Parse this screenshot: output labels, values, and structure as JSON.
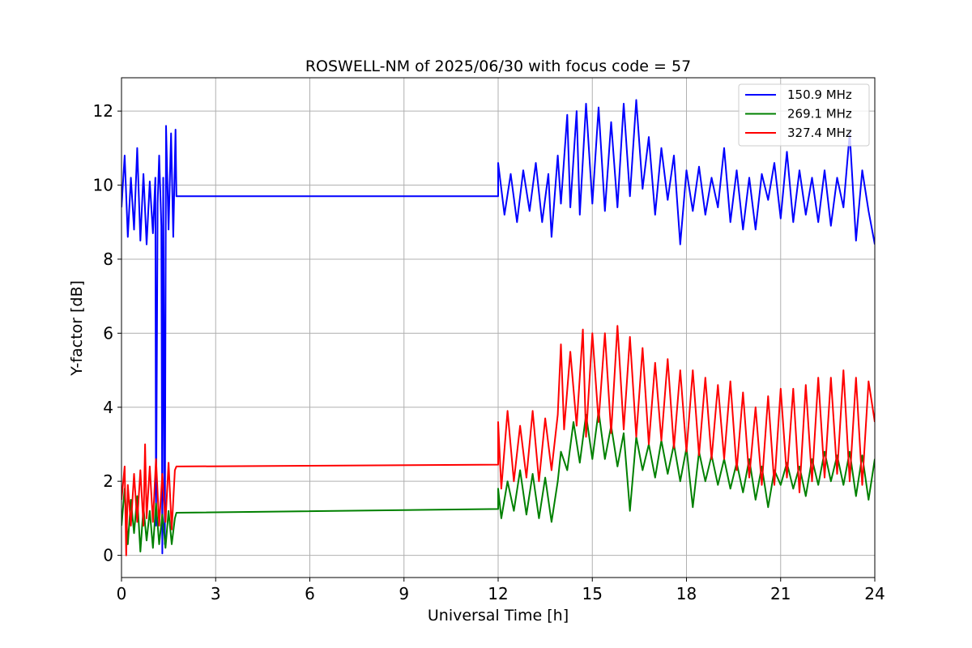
{
  "chart_data": {
    "type": "line",
    "title": "ROSWELL-NM of 2025/06/30 with focus code = 57",
    "xlabel": "Universal Time [h]",
    "ylabel": "Y-factor [dB]",
    "xlim": [
      0,
      24
    ],
    "ylim": [
      -0.6,
      12.9
    ],
    "xticks": [
      0,
      3,
      6,
      9,
      12,
      15,
      18,
      21,
      24
    ],
    "yticks": [
      0,
      2,
      4,
      6,
      8,
      10,
      12
    ],
    "grid": true,
    "legend_position": "top-right",
    "series": [
      {
        "name": "150.9 MHz",
        "color": "#0000ff",
        "points": [
          [
            0.0,
            9.4
          ],
          [
            0.1,
            10.8
          ],
          [
            0.2,
            8.6
          ],
          [
            0.3,
            10.2
          ],
          [
            0.4,
            8.8
          ],
          [
            0.5,
            11.0
          ],
          [
            0.6,
            8.5
          ],
          [
            0.7,
            10.3
          ],
          [
            0.8,
            8.4
          ],
          [
            0.9,
            10.1
          ],
          [
            1.0,
            8.7
          ],
          [
            1.08,
            10.2
          ],
          [
            1.1,
            0.8
          ],
          [
            1.15,
            9.5
          ],
          [
            1.2,
            10.8
          ],
          [
            1.27,
            8.9
          ],
          [
            1.3,
            0.05
          ],
          [
            1.33,
            10.2
          ],
          [
            1.38,
            0.3
          ],
          [
            1.42,
            11.6
          ],
          [
            1.5,
            8.8
          ],
          [
            1.58,
            11.4
          ],
          [
            1.65,
            8.6
          ],
          [
            1.72,
            11.5
          ],
          [
            1.75,
            9.7
          ],
          [
            12.0,
            9.7
          ],
          [
            12.0,
            10.6
          ],
          [
            12.2,
            9.2
          ],
          [
            12.4,
            10.3
          ],
          [
            12.6,
            9.0
          ],
          [
            12.8,
            10.4
          ],
          [
            13.0,
            9.3
          ],
          [
            13.2,
            10.6
          ],
          [
            13.4,
            9.0
          ],
          [
            13.6,
            10.3
          ],
          [
            13.7,
            8.6
          ],
          [
            13.9,
            10.8
          ],
          [
            14.0,
            9.5
          ],
          [
            14.2,
            11.9
          ],
          [
            14.3,
            9.4
          ],
          [
            14.5,
            12.0
          ],
          [
            14.6,
            9.2
          ],
          [
            14.8,
            12.2
          ],
          [
            15.0,
            9.5
          ],
          [
            15.2,
            12.1
          ],
          [
            15.4,
            9.3
          ],
          [
            15.6,
            11.7
          ],
          [
            15.8,
            9.4
          ],
          [
            16.0,
            12.2
          ],
          [
            16.2,
            9.7
          ],
          [
            16.4,
            12.3
          ],
          [
            16.6,
            9.9
          ],
          [
            16.8,
            11.3
          ],
          [
            17.0,
            9.2
          ],
          [
            17.2,
            11.0
          ],
          [
            17.4,
            9.6
          ],
          [
            17.6,
            10.8
          ],
          [
            17.8,
            8.4
          ],
          [
            18.0,
            10.4
          ],
          [
            18.2,
            9.3
          ],
          [
            18.4,
            10.5
          ],
          [
            18.6,
            9.2
          ],
          [
            18.8,
            10.2
          ],
          [
            19.0,
            9.4
          ],
          [
            19.2,
            11.0
          ],
          [
            19.4,
            9.0
          ],
          [
            19.6,
            10.4
          ],
          [
            19.8,
            8.8
          ],
          [
            20.0,
            10.2
          ],
          [
            20.2,
            8.8
          ],
          [
            20.4,
            10.3
          ],
          [
            20.6,
            9.6
          ],
          [
            20.8,
            10.6
          ],
          [
            21.0,
            9.1
          ],
          [
            21.2,
            10.9
          ],
          [
            21.4,
            9.0
          ],
          [
            21.6,
            10.4
          ],
          [
            21.8,
            9.2
          ],
          [
            22.0,
            10.2
          ],
          [
            22.2,
            9.0
          ],
          [
            22.4,
            10.4
          ],
          [
            22.6,
            8.9
          ],
          [
            22.8,
            10.2
          ],
          [
            23.0,
            9.4
          ],
          [
            23.2,
            11.4
          ],
          [
            23.4,
            8.5
          ],
          [
            23.6,
            10.4
          ],
          [
            23.8,
            9.3
          ],
          [
            24.0,
            8.4
          ]
        ]
      },
      {
        "name": "269.1 MHz",
        "color": "#008000",
        "points": [
          [
            0.0,
            0.8
          ],
          [
            0.1,
            1.8
          ],
          [
            0.2,
            0.3
          ],
          [
            0.3,
            1.5
          ],
          [
            0.4,
            0.6
          ],
          [
            0.5,
            1.6
          ],
          [
            0.6,
            0.1
          ],
          [
            0.7,
            1.3
          ],
          [
            0.8,
            0.4
          ],
          [
            0.9,
            1.2
          ],
          [
            1.0,
            0.2
          ],
          [
            1.1,
            1.4
          ],
          [
            1.2,
            0.3
          ],
          [
            1.3,
            1.1
          ],
          [
            1.4,
            0.2
          ],
          [
            1.5,
            1.2
          ],
          [
            1.6,
            0.3
          ],
          [
            1.7,
            1.0
          ],
          [
            1.75,
            1.15
          ],
          [
            12.0,
            1.25
          ],
          [
            12.0,
            1.8
          ],
          [
            12.1,
            1.0
          ],
          [
            12.3,
            2.0
          ],
          [
            12.5,
            1.2
          ],
          [
            12.7,
            2.3
          ],
          [
            12.9,
            1.1
          ],
          [
            13.1,
            2.2
          ],
          [
            13.3,
            1.0
          ],
          [
            13.5,
            2.1
          ],
          [
            13.7,
            0.9
          ],
          [
            13.9,
            2.0
          ],
          [
            14.0,
            2.8
          ],
          [
            14.2,
            2.3
          ],
          [
            14.4,
            3.6
          ],
          [
            14.6,
            2.5
          ],
          [
            14.8,
            3.8
          ],
          [
            15.0,
            2.6
          ],
          [
            15.2,
            3.9
          ],
          [
            15.4,
            2.6
          ],
          [
            15.6,
            3.5
          ],
          [
            15.8,
            2.4
          ],
          [
            16.0,
            3.3
          ],
          [
            16.2,
            1.2
          ],
          [
            16.4,
            3.2
          ],
          [
            16.6,
            2.3
          ],
          [
            16.8,
            3.0
          ],
          [
            17.0,
            2.1
          ],
          [
            17.2,
            3.1
          ],
          [
            17.4,
            2.2
          ],
          [
            17.6,
            3.0
          ],
          [
            17.8,
            2.0
          ],
          [
            18.0,
            2.9
          ],
          [
            18.2,
            1.3
          ],
          [
            18.4,
            2.8
          ],
          [
            18.6,
            2.0
          ],
          [
            18.8,
            2.7
          ],
          [
            19.0,
            1.9
          ],
          [
            19.2,
            2.6
          ],
          [
            19.4,
            1.8
          ],
          [
            19.6,
            2.5
          ],
          [
            19.8,
            1.7
          ],
          [
            20.0,
            2.6
          ],
          [
            20.2,
            1.5
          ],
          [
            20.4,
            2.4
          ],
          [
            20.6,
            1.3
          ],
          [
            20.8,
            2.3
          ],
          [
            21.0,
            1.9
          ],
          [
            21.2,
            2.5
          ],
          [
            21.4,
            1.8
          ],
          [
            21.6,
            2.4
          ],
          [
            21.8,
            1.6
          ],
          [
            22.0,
            2.6
          ],
          [
            22.2,
            1.9
          ],
          [
            22.4,
            2.8
          ],
          [
            22.6,
            2.0
          ],
          [
            22.8,
            2.7
          ],
          [
            23.0,
            1.9
          ],
          [
            23.2,
            2.8
          ],
          [
            23.4,
            1.6
          ],
          [
            23.6,
            2.7
          ],
          [
            23.8,
            1.5
          ],
          [
            24.0,
            2.6
          ]
        ]
      },
      {
        "name": "327.4 MHz",
        "color": "#ff0000",
        "points": [
          [
            0.0,
            1.5
          ],
          [
            0.1,
            2.4
          ],
          [
            0.15,
            0.0
          ],
          [
            0.2,
            1.9
          ],
          [
            0.3,
            0.8
          ],
          [
            0.4,
            2.2
          ],
          [
            0.5,
            0.9
          ],
          [
            0.6,
            2.3
          ],
          [
            0.7,
            0.8
          ],
          [
            0.75,
            3.0
          ],
          [
            0.8,
            1.0
          ],
          [
            0.9,
            2.4
          ],
          [
            1.0,
            0.9
          ],
          [
            1.1,
            2.6
          ],
          [
            1.2,
            0.8
          ],
          [
            1.3,
            2.2
          ],
          [
            1.4,
            0.9
          ],
          [
            1.5,
            2.5
          ],
          [
            1.6,
            0.7
          ],
          [
            1.7,
            2.3
          ],
          [
            1.75,
            2.4
          ],
          [
            12.0,
            2.45
          ],
          [
            12.0,
            3.6
          ],
          [
            12.1,
            1.8
          ],
          [
            12.3,
            3.9
          ],
          [
            12.5,
            2.0
          ],
          [
            12.7,
            3.5
          ],
          [
            12.9,
            2.1
          ],
          [
            13.1,
            3.9
          ],
          [
            13.3,
            2.0
          ],
          [
            13.5,
            3.7
          ],
          [
            13.7,
            2.3
          ],
          [
            13.9,
            3.8
          ],
          [
            14.0,
            5.7
          ],
          [
            14.1,
            3.4
          ],
          [
            14.3,
            5.5
          ],
          [
            14.5,
            3.5
          ],
          [
            14.7,
            6.1
          ],
          [
            14.8,
            3.2
          ],
          [
            15.0,
            6.0
          ],
          [
            15.2,
            3.6
          ],
          [
            15.4,
            6.0
          ],
          [
            15.6,
            3.3
          ],
          [
            15.8,
            6.2
          ],
          [
            16.0,
            3.4
          ],
          [
            16.2,
            5.9
          ],
          [
            16.4,
            3.2
          ],
          [
            16.6,
            5.6
          ],
          [
            16.8,
            3.0
          ],
          [
            17.0,
            5.2
          ],
          [
            17.2,
            3.1
          ],
          [
            17.4,
            5.3
          ],
          [
            17.6,
            2.9
          ],
          [
            17.8,
            5.0
          ],
          [
            18.0,
            2.8
          ],
          [
            18.2,
            5.0
          ],
          [
            18.4,
            2.7
          ],
          [
            18.6,
            4.8
          ],
          [
            18.8,
            2.6
          ],
          [
            19.0,
            4.6
          ],
          [
            19.2,
            2.6
          ],
          [
            19.4,
            4.7
          ],
          [
            19.6,
            2.3
          ],
          [
            19.8,
            4.4
          ],
          [
            20.0,
            2.1
          ],
          [
            20.2,
            4.0
          ],
          [
            20.4,
            1.9
          ],
          [
            20.6,
            4.3
          ],
          [
            20.8,
            1.9
          ],
          [
            21.0,
            4.5
          ],
          [
            21.2,
            2.1
          ],
          [
            21.4,
            4.5
          ],
          [
            21.6,
            1.7
          ],
          [
            21.8,
            4.6
          ],
          [
            22.0,
            2.0
          ],
          [
            22.2,
            4.8
          ],
          [
            22.4,
            2.1
          ],
          [
            22.6,
            4.8
          ],
          [
            22.8,
            2.2
          ],
          [
            23.0,
            5.0
          ],
          [
            23.2,
            2.0
          ],
          [
            23.4,
            4.8
          ],
          [
            23.6,
            1.9
          ],
          [
            23.8,
            4.7
          ],
          [
            24.0,
            3.6
          ]
        ]
      }
    ]
  }
}
